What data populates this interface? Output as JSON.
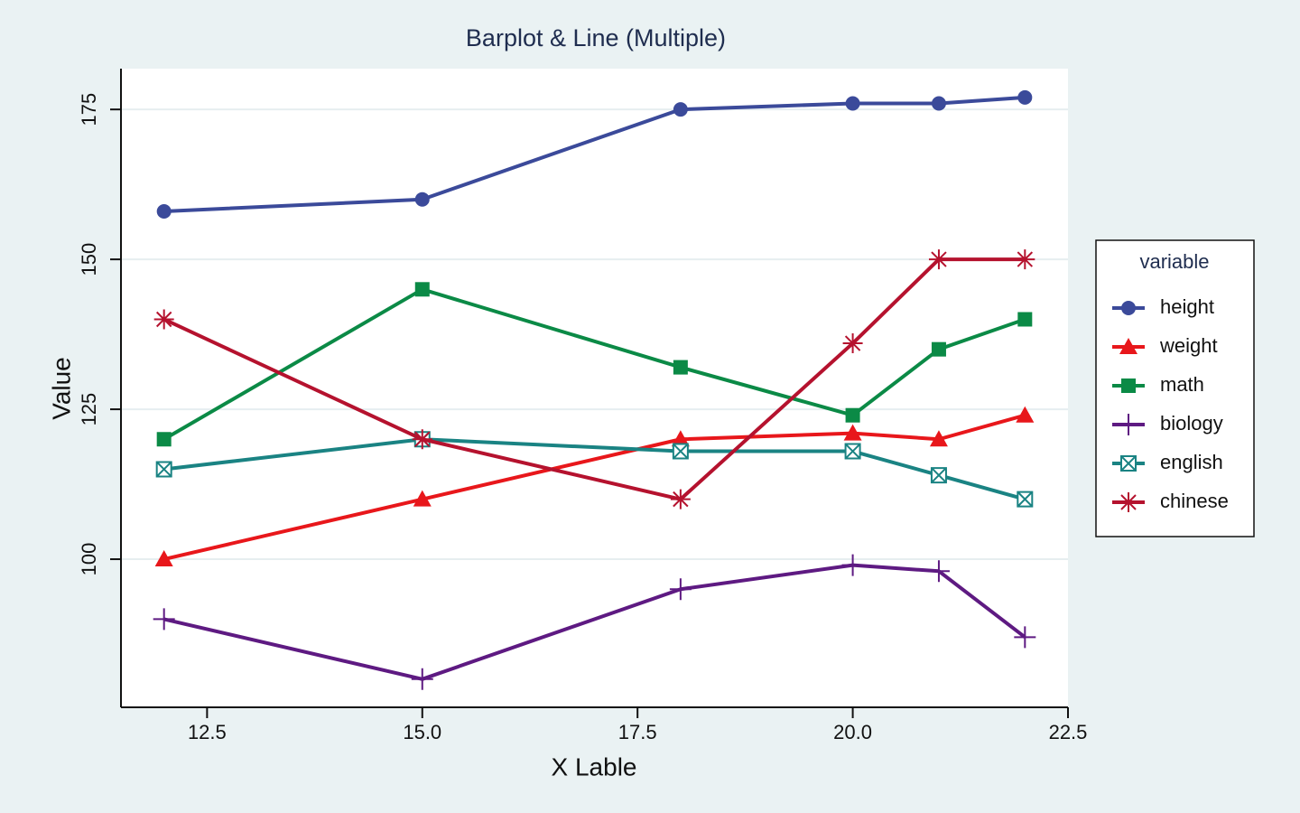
{
  "chart_data": {
    "type": "line",
    "title": "Barplot & Line (Multiple)",
    "xlabel": "X Lable",
    "ylabel": "Value",
    "x": [
      12,
      15,
      18,
      20,
      21,
      22
    ],
    "series": [
      {
        "name": "height",
        "color": "#3b4a9a",
        "marker": "circle",
        "values": [
          158,
          160,
          175,
          176,
          176,
          177
        ]
      },
      {
        "name": "weight",
        "color": "#e8171b",
        "marker": "triangle",
        "values": [
          100,
          110,
          120,
          121,
          120,
          124
        ]
      },
      {
        "name": "math",
        "color": "#0b8a46",
        "marker": "square",
        "values": [
          120,
          145,
          132,
          124,
          135,
          140
        ]
      },
      {
        "name": "biology",
        "color": "#5e1a82",
        "marker": "plus",
        "values": [
          90,
          80,
          95,
          99,
          98,
          87
        ]
      },
      {
        "name": "english",
        "color": "#1a8383",
        "marker": "square-x",
        "values": [
          115,
          120,
          118,
          118,
          114,
          110
        ]
      },
      {
        "name": "chinese",
        "color": "#b5122e",
        "marker": "asterisk",
        "values": [
          140,
          120,
          110,
          136,
          150,
          150
        ]
      }
    ],
    "xlim": [
      11.5,
      22.5
    ],
    "xticks": [
      12.5,
      {
        "value": 15,
        "label": "15.0"
      },
      17.5,
      {
        "value": 20,
        "label": "20.0"
      },
      22.5
    ],
    "ylim": [
      75.3,
      181.8
    ],
    "yticks": [
      100,
      125,
      150,
      175
    ],
    "grid": true,
    "legend": {
      "title": "variable",
      "position": "right"
    }
  }
}
